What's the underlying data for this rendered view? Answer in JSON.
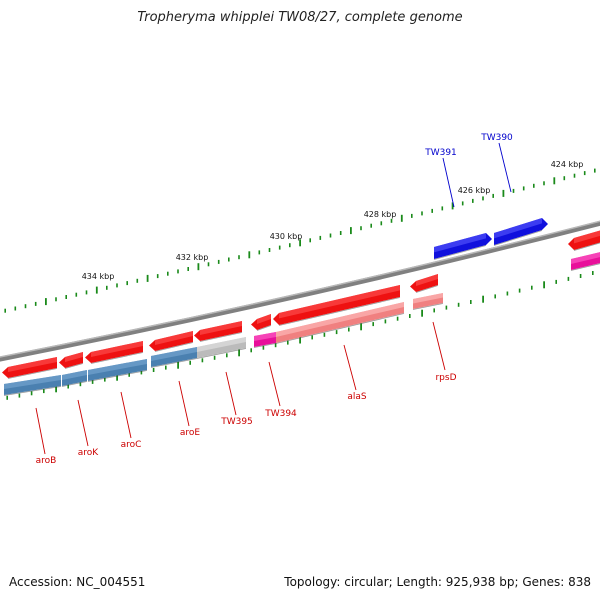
{
  "title": "Tropheryma whipplei TW08/27, complete genome",
  "footer": {
    "accession": "Accession: NC_004551",
    "summary": "Topology: circular; Length: 925,938 bp; Genes: 838"
  },
  "colors": {
    "forward_gene": "#ee1111",
    "forward_gene_top": "#ff5555",
    "forward_blue": "#1010dd",
    "reverse_steelblue": "#4a80b0",
    "reverse_pink": "#f08080",
    "reverse_magenta": "#e8109a",
    "reverse_gray": "#bbbbbb",
    "backbone": "#808080",
    "tick": "#1a8a1a",
    "label_red": "#cc0000",
    "label_blue": "#0000cc"
  },
  "scale_labels": [
    "424 kbp",
    "426 kbp",
    "428 kbp",
    "430 kbp",
    "432 kbp",
    "434 kbp"
  ],
  "gene_labels": [
    {
      "name": "TW390",
      "strand": "forward"
    },
    {
      "name": "TW391",
      "strand": "forward"
    },
    {
      "name": "rpsD",
      "strand": "reverse"
    },
    {
      "name": "alaS",
      "strand": "reverse"
    },
    {
      "name": "TW394",
      "strand": "reverse"
    },
    {
      "name": "TW395",
      "strand": "reverse"
    },
    {
      "name": "aroE",
      "strand": "reverse"
    },
    {
      "name": "aroC",
      "strand": "reverse"
    },
    {
      "name": "aroK",
      "strand": "reverse"
    },
    {
      "name": "aroB",
      "strand": "reverse"
    }
  ]
}
